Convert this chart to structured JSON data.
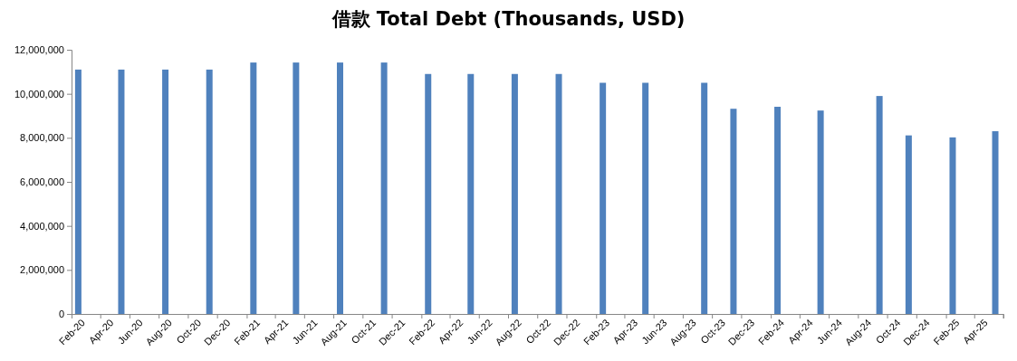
{
  "chart_data": {
    "type": "bar",
    "title": "借款 Total Debt (Thousands, USD)",
    "x": [
      "2020-02-15",
      "2020-05-15",
      "2020-08-15",
      "2020-11-15",
      "2021-02-15",
      "2021-05-15",
      "2021-08-15",
      "2021-11-15",
      "2022-02-15",
      "2022-05-15",
      "2022-08-15",
      "2022-11-15",
      "2023-02-15",
      "2023-05-15",
      "2023-09-15",
      "2023-11-15",
      "2024-02-15",
      "2024-05-15",
      "2024-09-15",
      "2024-11-15",
      "2025-02-15",
      "2025-05-15"
    ],
    "values": [
      11100000,
      11100000,
      11100000,
      11100000,
      11420000,
      11420000,
      11420000,
      11420000,
      10900000,
      10900000,
      10900000,
      10900000,
      10500000,
      10500000,
      10500000,
      9320000,
      9410000,
      9240000,
      9900000,
      8110000,
      8020000,
      8300000
    ],
    "color": "#4f81bd",
    "xlim": [
      "2020-02",
      "2025-06"
    ],
    "xticks": [
      {
        "value": "2020-02",
        "label": "Feb-20"
      },
      {
        "value": "2020-04",
        "label": "Apr-20"
      },
      {
        "value": "2020-06",
        "label": "Jun-20"
      },
      {
        "value": "2020-08",
        "label": "Aug-20"
      },
      {
        "value": "2020-10",
        "label": "Oct-20"
      },
      {
        "value": "2020-12",
        "label": "Dec-20"
      },
      {
        "value": "2021-02",
        "label": "Feb-21"
      },
      {
        "value": "2021-04",
        "label": "Apr-21"
      },
      {
        "value": "2021-06",
        "label": "Jun-21"
      },
      {
        "value": "2021-08",
        "label": "Aug-21"
      },
      {
        "value": "2021-10",
        "label": "Oct-21"
      },
      {
        "value": "2021-12",
        "label": "Dec-21"
      },
      {
        "value": "2022-02",
        "label": "Feb-22"
      },
      {
        "value": "2022-04",
        "label": "Apr-22"
      },
      {
        "value": "2022-06",
        "label": "Jun-22"
      },
      {
        "value": "2022-08",
        "label": "Aug-22"
      },
      {
        "value": "2022-10",
        "label": "Oct-22"
      },
      {
        "value": "2022-12",
        "label": "Dec-22"
      },
      {
        "value": "2023-02",
        "label": "Feb-23"
      },
      {
        "value": "2023-04",
        "label": "Apr-23"
      },
      {
        "value": "2023-06",
        "label": "Jun-23"
      },
      {
        "value": "2023-08",
        "label": "Aug-23"
      },
      {
        "value": "2023-10",
        "label": "Oct-23"
      },
      {
        "value": "2023-12",
        "label": "Dec-23"
      },
      {
        "value": "2024-02",
        "label": "Feb-24"
      },
      {
        "value": "2024-04",
        "label": "Apr-24"
      },
      {
        "value": "2024-06",
        "label": "Jun-24"
      },
      {
        "value": "2024-08",
        "label": "Aug-24"
      },
      {
        "value": "2024-10",
        "label": "Oct-24"
      },
      {
        "value": "2024-12",
        "label": "Dec-24"
      },
      {
        "value": "2025-02",
        "label": "Feb-25"
      },
      {
        "value": "2025-04",
        "label": "Apr-25"
      }
    ],
    "ylim": [
      0,
      12000000
    ],
    "yticks": [
      {
        "value": 0,
        "label": "0"
      },
      {
        "value": 2000000,
        "label": "2,000,000"
      },
      {
        "value": 4000000,
        "label": "4,000,000"
      },
      {
        "value": 6000000,
        "label": "6,000,000"
      },
      {
        "value": 8000000,
        "label": "8,000,000"
      },
      {
        "value": 10000000,
        "label": "10,000,000"
      },
      {
        "value": 12000000,
        "label": "12,000,000"
      }
    ],
    "grid": false,
    "legend": false
  }
}
